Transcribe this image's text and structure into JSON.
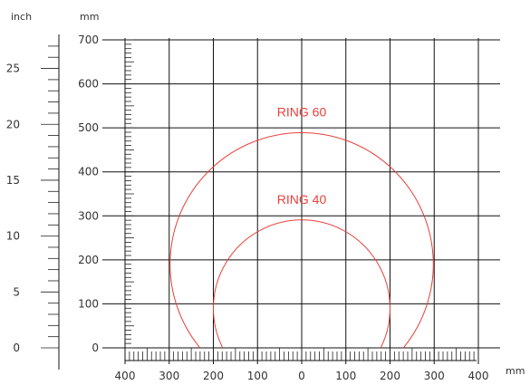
{
  "chart_data": {
    "type": "line",
    "title": "",
    "units": {
      "inch": "inch",
      "mm_top": "mm",
      "mm_right": "mm"
    },
    "x_axis": {
      "unit": "mm",
      "range": [
        -400,
        400
      ],
      "major_ticks": [
        -400,
        -300,
        -200,
        -100,
        0,
        100,
        200,
        300,
        400
      ],
      "tick_labels": [
        "400",
        "300",
        "200",
        "100",
        "0",
        "100",
        "200",
        "300",
        "400"
      ]
    },
    "y_axis_mm": {
      "unit": "mm",
      "range": [
        0,
        700
      ],
      "major_ticks": [
        0,
        100,
        200,
        300,
        400,
        500,
        600,
        700
      ],
      "tick_labels": [
        "0",
        "100",
        "200",
        "300",
        "400",
        "500",
        "600",
        "700"
      ]
    },
    "y_axis_inch": {
      "unit": "inch",
      "major_ticks": [
        0,
        5,
        10,
        15,
        20,
        25
      ],
      "tick_labels": [
        "0",
        "5",
        "10",
        "15",
        "20",
        "25"
      ]
    },
    "grid": true,
    "series": [
      {
        "name": "RING 60",
        "color": "#e8413c",
        "center_mm": [
          0,
          190
        ],
        "radius_mm": 298,
        "ends_y_mm": 0
      },
      {
        "name": "RING 40",
        "color": "#e8413c",
        "center_mm": [
          0,
          90
        ],
        "radius_mm": 200,
        "ends_y_mm": 0
      }
    ]
  }
}
